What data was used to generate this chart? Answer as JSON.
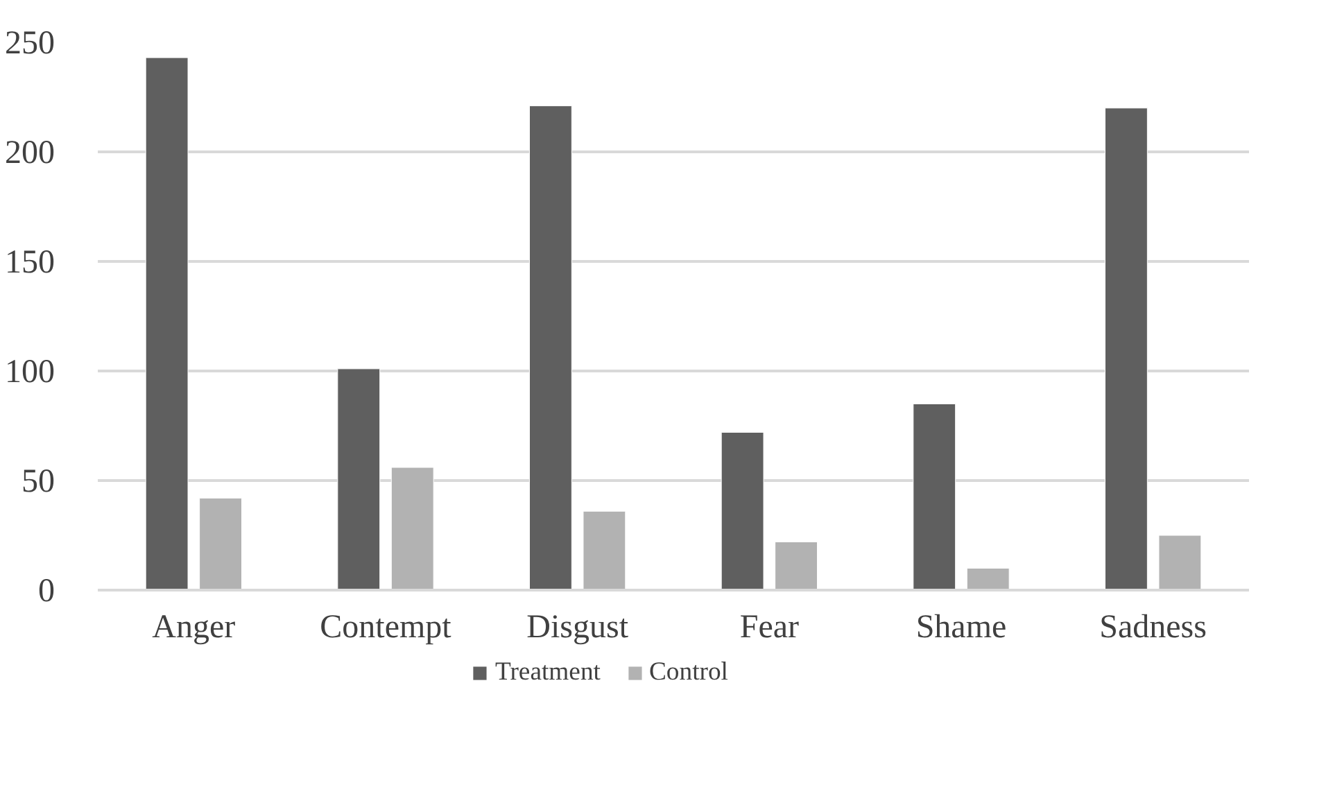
{
  "chart_data": {
    "type": "bar",
    "categories": [
      "Anger",
      "Contempt",
      "Disgust",
      "Fear",
      "Shame",
      "Sadness"
    ],
    "series": [
      {
        "name": "Treatment",
        "color": "#5f5f5f",
        "values": [
          243,
          101,
          221,
          72,
          85,
          220
        ]
      },
      {
        "name": "Control",
        "color": "#b2b2b2",
        "values": [
          42,
          56,
          36,
          22,
          10,
          25
        ]
      }
    ],
    "ylim": [
      0,
      250
    ],
    "yticks": [
      0,
      50,
      100,
      150,
      200,
      250
    ],
    "grid": "y",
    "legend": "bottom"
  }
}
